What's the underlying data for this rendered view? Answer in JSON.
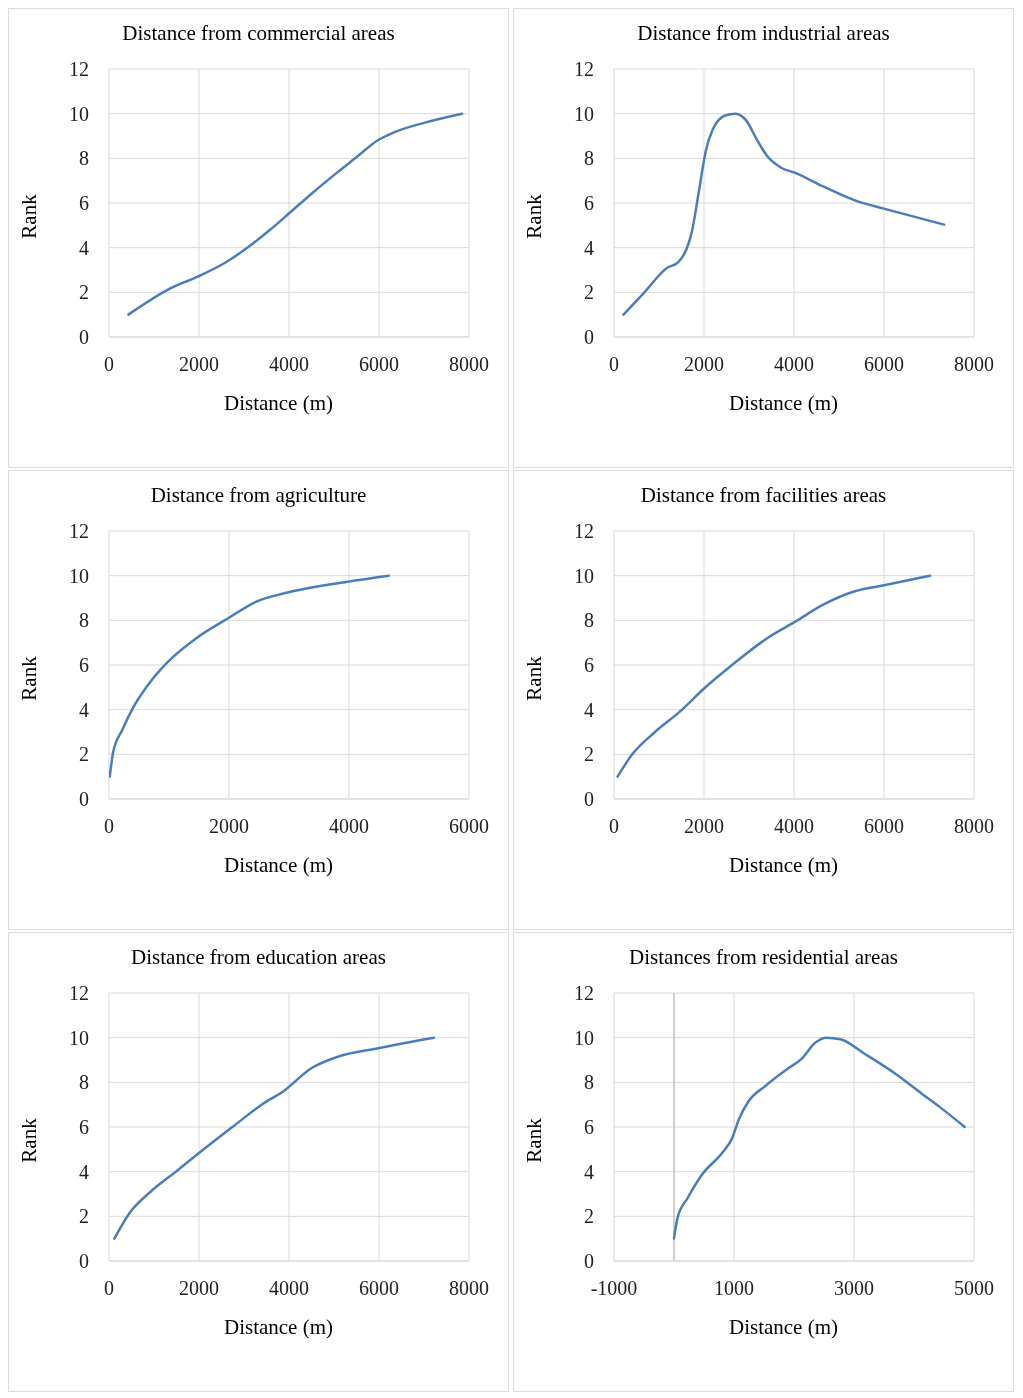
{
  "chart_data": [
    {
      "type": "line",
      "title": "Distance from commercial areas",
      "xlabel": "Distance (m)",
      "ylabel": "Rank",
      "color": "#4a7ebb",
      "grid": true,
      "xlim": [
        0,
        8000
      ],
      "xticks": [
        0,
        2000,
        4000,
        6000,
        8000
      ],
      "ylim": [
        0,
        12
      ],
      "yticks": [
        0,
        2,
        4,
        6,
        8,
        10,
        12
      ],
      "x": [
        430,
        1385,
        1970,
        2560,
        3110,
        3580,
        4010,
        4520,
        5060,
        5530,
        5965,
        6320,
        7020,
        7845
      ],
      "values": [
        1,
        2.2,
        2.7,
        3.3,
        4.05,
        4.8,
        5.55,
        6.45,
        7.35,
        8.1,
        8.8,
        9.15,
        9.6,
        10
      ]
    },
    {
      "type": "line",
      "title": "Distance from industrial areas",
      "xlabel": "Distance (m)",
      "ylabel": "Rank",
      "color": "#4a7ebb",
      "grid": true,
      "xlim": [
        0,
        8000
      ],
      "xticks": [
        0,
        2000,
        4000,
        6000,
        8000
      ],
      "ylim": [
        0,
        12
      ],
      "yticks": [
        0,
        2,
        4,
        6,
        8,
        10,
        12
      ],
      "x": [
        210,
        677,
        1183,
        1417,
        1612,
        1729,
        1885,
        2040,
        2196,
        2469,
        2702,
        2936,
        3170,
        3403,
        3715,
        4027,
        4650,
        5429,
        5974,
        7336
      ],
      "values": [
        1,
        2,
        3.1,
        3.33,
        3.94,
        4.7,
        6.5,
        8.33,
        9.3,
        9.92,
        10,
        9.7,
        8.86,
        8.1,
        7.58,
        7.35,
        6.74,
        6.06,
        5.76,
        5.03
      ]
    },
    {
      "type": "line",
      "title": "Distance from agriculture",
      "xlabel": "Distance (m)",
      "ylabel": "Rank",
      "color": "#4a7ebb",
      "grid": true,
      "xlim": [
        0,
        6000
      ],
      "xticks": [
        0,
        2000,
        4000,
        6000
      ],
      "ylim": [
        0,
        12
      ],
      "yticks": [
        0,
        2,
        4,
        6,
        8,
        10,
        12
      ],
      "x": [
        12,
        70,
        217,
        423,
        687,
        981,
        1450,
        1979,
        2449,
        2919,
        3975,
        4662
      ],
      "values": [
        1,
        2.1,
        3.07,
        4.19,
        5.24,
        6.14,
        7.19,
        8.08,
        8.83,
        9.21,
        9.73,
        10
      ]
    },
    {
      "type": "line",
      "title": "Distance from facilities areas",
      "xlabel": "Distance (m)",
      "ylabel": "Rank",
      "color": "#4a7ebb",
      "grid": true,
      "xlim": [
        0,
        8000
      ],
      "xticks": [
        0,
        2000,
        4000,
        6000,
        8000
      ],
      "ylim": [
        0,
        12
      ],
      "yticks": [
        0,
        2,
        4,
        6,
        8,
        10,
        12
      ],
      "x": [
        78,
        405,
        911,
        1456,
        2002,
        2624,
        3403,
        4027,
        4650,
        5351,
        5974,
        7025
      ],
      "values": [
        1,
        2,
        3,
        3.9,
        4.95,
        6,
        7.2,
        7.94,
        8.7,
        9.3,
        9.56,
        10
      ]
    },
    {
      "type": "line",
      "title": "Distance from education areas",
      "xlabel": "Distance (m)",
      "ylabel": "Rank",
      "color": "#4a7ebb",
      "grid": true,
      "xlim": [
        0,
        8000
      ],
      "xticks": [
        0,
        2000,
        4000,
        6000,
        8000
      ],
      "ylim": [
        0,
        12
      ],
      "yticks": [
        0,
        2,
        4,
        6,
        8,
        10,
        12
      ],
      "x": [
        119,
        453,
        929,
        1485,
        2041,
        2756,
        3392,
        3868,
        4504,
        5060,
        6013,
        7220
      ],
      "values": [
        1,
        2.14,
        3.11,
        4,
        4.9,
        6.02,
        7,
        7.59,
        8.64,
        9.13,
        9.54,
        10
      ]
    },
    {
      "type": "line",
      "title": "Distances from residential areas",
      "xlabel": "Distance (m)",
      "ylabel": "Rank",
      "color": "#4a7ebb",
      "grid": true,
      "xlim": [
        -1000,
        5000
      ],
      "xticks": [
        -1000,
        1000,
        3000,
        5000
      ],
      "ylim": [
        0,
        12
      ],
      "yticks": [
        0,
        2,
        4,
        6,
        8,
        10,
        12
      ],
      "ref_lines": [
        {
          "axis": "x",
          "value": 0,
          "color": "#bfbfbf"
        }
      ],
      "x": [
        0,
        59,
        225,
        462,
        818,
        966,
        1085,
        1232,
        1528,
        1884,
        2121,
        2358,
        2536,
        2773,
        3187,
        3661,
        4135,
        4431,
        4846
      ],
      "values": [
        1,
        1.93,
        2.81,
        3.85,
        4.89,
        5.48,
        6.37,
        7.11,
        7.85,
        8.59,
        9.04,
        9.78,
        10,
        9.93,
        9.26,
        8.44,
        7.48,
        6.89,
        6
      ]
    }
  ]
}
